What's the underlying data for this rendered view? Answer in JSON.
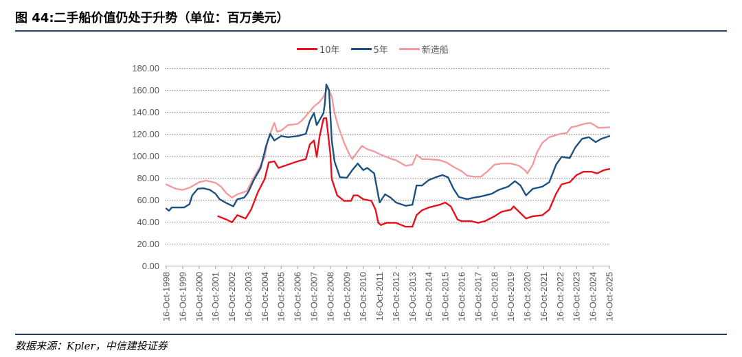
{
  "source": "数据来源：Kpler，中信建投证券",
  "chart_data": {
    "type": "line",
    "title": "图 44:二手船价值仍处于升势（单位：百万美元）",
    "ylim": [
      0,
      180
    ],
    "grid": true,
    "legend": "top",
    "y_ticks": [
      "0.00",
      "20.00",
      "40.00",
      "60.00",
      "80.00",
      "100.00",
      "120.00",
      "140.00",
      "160.00",
      "180.00"
    ],
    "x_ticks": [
      "16-Oct-1998",
      "16-Oct-1999",
      "16-Oct-2000",
      "16-Oct-2001",
      "16-Oct-2002",
      "16-Oct-2003",
      "16-Oct-2004",
      "16-Oct-2005",
      "16-Oct-2006",
      "16-Oct-2007",
      "16-Oct-2008",
      "16-Oct-2009",
      "16-Oct-2010",
      "16-Oct-2011",
      "16-Oct-2012",
      "16-Oct-2013",
      "16-Oct-2014",
      "16-Oct-2015",
      "16-Oct-2016",
      "16-Oct-2017",
      "16-Oct-2018",
      "16-Oct-2019",
      "16-Oct-2020",
      "16-Oct-2021",
      "16-Oct-2022",
      "16-Oct-2023",
      "16-Oct-2024",
      "16-Oct-2025"
    ],
    "series": [
      {
        "name": "10年",
        "color": "#e8101c",
        "points": [
          [
            "2001-12",
            45
          ],
          [
            "2002-06",
            42
          ],
          [
            "2002-10",
            39.5
          ],
          [
            "2003-02",
            46
          ],
          [
            "2003-08",
            43
          ],
          [
            "2003-12",
            51
          ],
          [
            "2004-05",
            67
          ],
          [
            "2004-10",
            79
          ],
          [
            "2005-01",
            94
          ],
          [
            "2005-05",
            95
          ],
          [
            "2005-08",
            89
          ],
          [
            "2006-03",
            92
          ],
          [
            "2006-10",
            95
          ],
          [
            "2007-04",
            97
          ],
          [
            "2007-07",
            110.5
          ],
          [
            "2007-10",
            114
          ],
          [
            "2007-12",
            99
          ],
          [
            "2008-02",
            117
          ],
          [
            "2008-05",
            134
          ],
          [
            "2008-07",
            134.5
          ],
          [
            "2008-10",
            101
          ],
          [
            "2008-11",
            79
          ],
          [
            "2009-03",
            64
          ],
          [
            "2009-08",
            59
          ],
          [
            "2010-01",
            59
          ],
          [
            "2010-03",
            64
          ],
          [
            "2010-06",
            64
          ],
          [
            "2010-10",
            60.5
          ],
          [
            "2011-04",
            59
          ],
          [
            "2011-07",
            51
          ],
          [
            "2011-09",
            39
          ],
          [
            "2011-11",
            37
          ],
          [
            "2012-03",
            39
          ],
          [
            "2012-10",
            39
          ],
          [
            "2013-05",
            35.5
          ],
          [
            "2013-10",
            35.5
          ],
          [
            "2014-01",
            46
          ],
          [
            "2014-05",
            50.5
          ],
          [
            "2014-10",
            53
          ],
          [
            "2015-06",
            55.5
          ],
          [
            "2015-10",
            57.5
          ],
          [
            "2016-02",
            54
          ],
          [
            "2016-07",
            42
          ],
          [
            "2016-10",
            40.5
          ],
          [
            "2017-05",
            40.5
          ],
          [
            "2017-10",
            39
          ],
          [
            "2018-03",
            40.5
          ],
          [
            "2018-10",
            45
          ],
          [
            "2019-03",
            49
          ],
          [
            "2019-10",
            51
          ],
          [
            "2019-12",
            54
          ],
          [
            "2020-04",
            49
          ],
          [
            "2020-09",
            43
          ],
          [
            "2021-02",
            45
          ],
          [
            "2021-09",
            46
          ],
          [
            "2022-02",
            51
          ],
          [
            "2022-07",
            65.5
          ],
          [
            "2022-11",
            74
          ],
          [
            "2023-05",
            76
          ],
          [
            "2023-10",
            82.5
          ],
          [
            "2024-03",
            85.5
          ],
          [
            "2024-09",
            85.5
          ],
          [
            "2025-01",
            84
          ],
          [
            "2025-06",
            87
          ],
          [
            "2025-10",
            88
          ]
        ]
      },
      {
        "name": "5年",
        "color": "#1b5181",
        "points": [
          [
            "1998-10",
            52
          ],
          [
            "1998-12",
            50
          ],
          [
            "1999-02",
            53
          ],
          [
            "1999-11",
            53
          ],
          [
            "2000-03",
            56
          ],
          [
            "2000-05",
            64
          ],
          [
            "2000-09",
            70
          ],
          [
            "2001-01",
            70.5
          ],
          [
            "2001-06",
            69
          ],
          [
            "2001-10",
            65.5
          ],
          [
            "2002-01",
            60.5
          ],
          [
            "2002-06",
            57
          ],
          [
            "2002-11",
            54
          ],
          [
            "2003-02",
            60.5
          ],
          [
            "2003-07",
            62
          ],
          [
            "2003-10",
            67
          ],
          [
            "2004-02",
            78
          ],
          [
            "2004-07",
            89
          ],
          [
            "2004-11",
            109
          ],
          [
            "2005-02",
            120
          ],
          [
            "2005-05",
            114
          ],
          [
            "2005-10",
            118
          ],
          [
            "2006-03",
            117
          ],
          [
            "2006-10",
            118
          ],
          [
            "2007-04",
            120
          ],
          [
            "2007-07",
            132
          ],
          [
            "2007-10",
            139
          ],
          [
            "2007-12",
            128
          ],
          [
            "2008-05",
            139
          ],
          [
            "2008-06",
            148
          ],
          [
            "2008-07",
            165
          ],
          [
            "2008-09",
            160
          ],
          [
            "2008-11",
            114
          ],
          [
            "2009-01",
            95
          ],
          [
            "2009-05",
            80.5
          ],
          [
            "2009-10",
            80
          ],
          [
            "2010-02",
            87
          ],
          [
            "2010-06",
            93
          ],
          [
            "2010-10",
            87
          ],
          [
            "2011-01",
            89
          ],
          [
            "2011-06",
            84
          ],
          [
            "2011-09",
            64
          ],
          [
            "2011-10",
            57.5
          ],
          [
            "2012-02",
            65
          ],
          [
            "2012-06",
            62
          ],
          [
            "2012-10",
            57.5
          ],
          [
            "2013-05",
            54.5
          ],
          [
            "2013-10",
            55.5
          ],
          [
            "2014-01",
            73
          ],
          [
            "2014-05",
            73
          ],
          [
            "2014-10",
            78
          ],
          [
            "2015-03",
            80.5
          ],
          [
            "2015-08",
            82.5
          ],
          [
            "2015-12",
            80.5
          ],
          [
            "2016-04",
            70
          ],
          [
            "2016-08",
            62.5
          ],
          [
            "2017-02",
            60.5
          ],
          [
            "2017-07",
            62
          ],
          [
            "2017-12",
            63
          ],
          [
            "2018-08",
            65.5
          ],
          [
            "2019-01",
            69
          ],
          [
            "2019-08",
            72
          ],
          [
            "2020-01",
            77
          ],
          [
            "2020-05",
            73
          ],
          [
            "2020-09",
            64
          ],
          [
            "2021-02",
            70
          ],
          [
            "2021-09",
            72
          ],
          [
            "2022-02",
            76
          ],
          [
            "2022-07",
            92
          ],
          [
            "2022-11",
            99
          ],
          [
            "2023-05",
            98
          ],
          [
            "2023-09",
            107.5
          ],
          [
            "2024-02",
            115.5
          ],
          [
            "2024-07",
            117
          ],
          [
            "2024-12",
            112.5
          ],
          [
            "2025-04",
            115.5
          ],
          [
            "2025-10",
            118
          ]
        ]
      },
      {
        "name": "新造船",
        "color": "#f39a9f",
        "points": [
          [
            "1998-10",
            74
          ],
          [
            "1999-05",
            70
          ],
          [
            "1999-10",
            69
          ],
          [
            "2000-03",
            71
          ],
          [
            "2000-10",
            76
          ],
          [
            "2001-03",
            77.5
          ],
          [
            "2001-10",
            75.5
          ],
          [
            "2002-02",
            72
          ],
          [
            "2002-06",
            66
          ],
          [
            "2002-10",
            62
          ],
          [
            "2003-02",
            65
          ],
          [
            "2003-09",
            68
          ],
          [
            "2004-01",
            78
          ],
          [
            "2004-06",
            89
          ],
          [
            "2004-10",
            99
          ],
          [
            "2004-12",
            113
          ],
          [
            "2005-04",
            127
          ],
          [
            "2005-05",
            130
          ],
          [
            "2005-07",
            122
          ],
          [
            "2005-10",
            123
          ],
          [
            "2006-03",
            128
          ],
          [
            "2006-10",
            129
          ],
          [
            "2007-01",
            132
          ],
          [
            "2007-06",
            139
          ],
          [
            "2007-10",
            145
          ],
          [
            "2008-02",
            149
          ],
          [
            "2008-05",
            154
          ],
          [
            "2008-08",
            162
          ],
          [
            "2008-11",
            154
          ],
          [
            "2009-01",
            139
          ],
          [
            "2009-04",
            126
          ],
          [
            "2009-08",
            112
          ],
          [
            "2009-12",
            101
          ],
          [
            "2010-02",
            97
          ],
          [
            "2010-06",
            104
          ],
          [
            "2010-09",
            109
          ],
          [
            "2011-01",
            106
          ],
          [
            "2011-06",
            104
          ],
          [
            "2011-11",
            101
          ],
          [
            "2012-07",
            97
          ],
          [
            "2012-10",
            96
          ],
          [
            "2013-05",
            91
          ],
          [
            "2013-10",
            92
          ],
          [
            "2014-01",
            101
          ],
          [
            "2014-05",
            97
          ],
          [
            "2014-10",
            97
          ],
          [
            "2015-06",
            96
          ],
          [
            "2015-11",
            94
          ],
          [
            "2016-04",
            90
          ],
          [
            "2016-10",
            86
          ],
          [
            "2017-02",
            82
          ],
          [
            "2017-07",
            81
          ],
          [
            "2017-12",
            81
          ],
          [
            "2018-05",
            86
          ],
          [
            "2018-10",
            92
          ],
          [
            "2019-03",
            93
          ],
          [
            "2019-10",
            93
          ],
          [
            "2020-04",
            91
          ],
          [
            "2020-09",
            86
          ],
          [
            "2020-10",
            84
          ],
          [
            "2021-02",
            92
          ],
          [
            "2021-05",
            103
          ],
          [
            "2021-09",
            112
          ],
          [
            "2022-02",
            117
          ],
          [
            "2022-10",
            120
          ],
          [
            "2023-03",
            121
          ],
          [
            "2023-06",
            126
          ],
          [
            "2023-10",
            127
          ],
          [
            "2024-03",
            129
          ],
          [
            "2024-08",
            130
          ],
          [
            "2024-11",
            128
          ],
          [
            "2025-02",
            125.5
          ],
          [
            "2025-10",
            126
          ]
        ]
      }
    ]
  }
}
